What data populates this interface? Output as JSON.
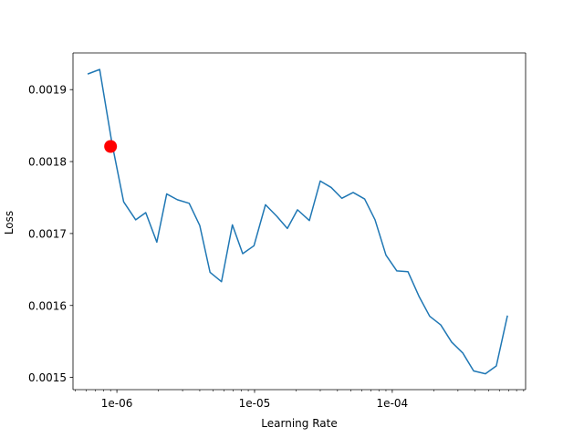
{
  "chart_data": {
    "type": "line",
    "title": "",
    "xlabel": "Learning Rate",
    "ylabel": "Loss",
    "x_scale": "log",
    "xlim": [
      4.8e-07,
      0.00093
    ],
    "ylim": [
      0.001483,
      0.001951
    ],
    "grid": false,
    "x_ticks": [
      {
        "value": 1e-06,
        "label": "1e-06"
      },
      {
        "value": 1e-05,
        "label": "1e-05"
      },
      {
        "value": 0.0001,
        "label": "1e-04"
      }
    ],
    "y_ticks": [
      {
        "value": 0.0015,
        "label": "0.0015"
      },
      {
        "value": 0.0016,
        "label": "0.0016"
      },
      {
        "value": 0.0017,
        "label": "0.0017"
      },
      {
        "value": 0.0018,
        "label": "0.0018"
      },
      {
        "value": 0.0019,
        "label": "0.0019"
      }
    ],
    "series": [
      {
        "color": "#1f77b4",
        "x": [
          6.2e-07,
          7.5e-07,
          9.2e-07,
          1.12e-06,
          1.37e-06,
          1.62e-06,
          1.95e-06,
          2.3e-06,
          2.75e-06,
          3.35e-06,
          4e-06,
          4.75e-06,
          5.75e-06,
          6.9e-06,
          8.2e-06,
          9.9e-06,
          1.2e-05,
          1.45e-05,
          1.73e-05,
          2.05e-05,
          2.5e-05,
          3e-05,
          3.6e-05,
          4.3e-05,
          5.2e-05,
          6.3e-05,
          7.5e-05,
          9e-05,
          0.000108,
          0.00013,
          0.000157,
          0.000187,
          0.000225,
          0.00027,
          0.000325,
          0.00039,
          0.000475,
          0.00057,
          0.000685
        ],
        "y": [
          0.001922,
          0.001928,
          0.001826,
          0.001744,
          0.001719,
          0.001729,
          0.001688,
          0.001755,
          0.001747,
          0.001742,
          0.001711,
          0.001646,
          0.001633,
          0.001712,
          0.001672,
          0.001683,
          0.00174,
          0.001724,
          0.001707,
          0.001733,
          0.001718,
          0.001773,
          0.001764,
          0.001749,
          0.001757,
          0.001748,
          0.001719,
          0.00167,
          0.001648,
          0.001647,
          0.001612,
          0.001585,
          0.001573,
          0.001549,
          0.001534,
          0.001509,
          0.001505,
          0.001516,
          0.001585
        ]
      }
    ],
    "marker": {
      "x": 9e-07,
      "y": 0.001821,
      "color": "#ff0000"
    }
  }
}
